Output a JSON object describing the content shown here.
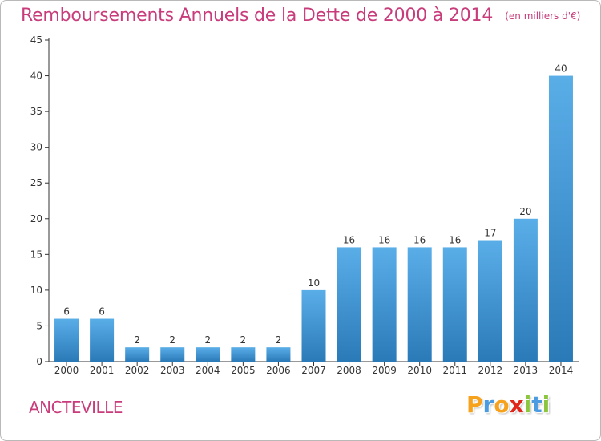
{
  "title": "Remboursements Annuels de la Dette de 2000 à 2014",
  "subtitle": "(en milliers d'€)",
  "commune": "ANCTEVILLE",
  "logo": {
    "letters": [
      "P",
      "r",
      "o",
      "x",
      "i",
      "t",
      "i"
    ],
    "colors": [
      "#f6a21c",
      "#4a9be0",
      "#f6a21c",
      "#e1261c",
      "#8cc63f",
      "#4a9be0",
      "#8cc63f"
    ]
  },
  "colors": {
    "title": "#c83c7b",
    "bar_top": "#5aaee8",
    "bar_bottom": "#2a7ab8",
    "axis": "#333333",
    "grid": "#d8d8d8"
  },
  "chart_data": {
    "type": "bar",
    "categories": [
      "2000",
      "2001",
      "2002",
      "2003",
      "2004",
      "2005",
      "2006",
      "2007",
      "2008",
      "2009",
      "2010",
      "2011",
      "2012",
      "2013",
      "2014"
    ],
    "values": [
      6,
      6,
      2,
      2,
      2,
      2,
      2,
      10,
      16,
      16,
      16,
      16,
      17,
      20,
      40
    ],
    "value_labels": [
      "6",
      "6",
      "2",
      "2",
      "2",
      "2",
      "2",
      "10",
      "16",
      "16",
      "16",
      "16",
      "17",
      "20",
      "40"
    ],
    "y_ticks": [
      "0",
      "5",
      "10",
      "15",
      "20",
      "25",
      "30",
      "35",
      "40",
      "45"
    ],
    "ylim": [
      0,
      45
    ],
    "grid": false,
    "legend": "none",
    "title": "Remboursements Annuels de la Dette de 2000 à 2014",
    "xlabel": "",
    "ylabel": ""
  }
}
